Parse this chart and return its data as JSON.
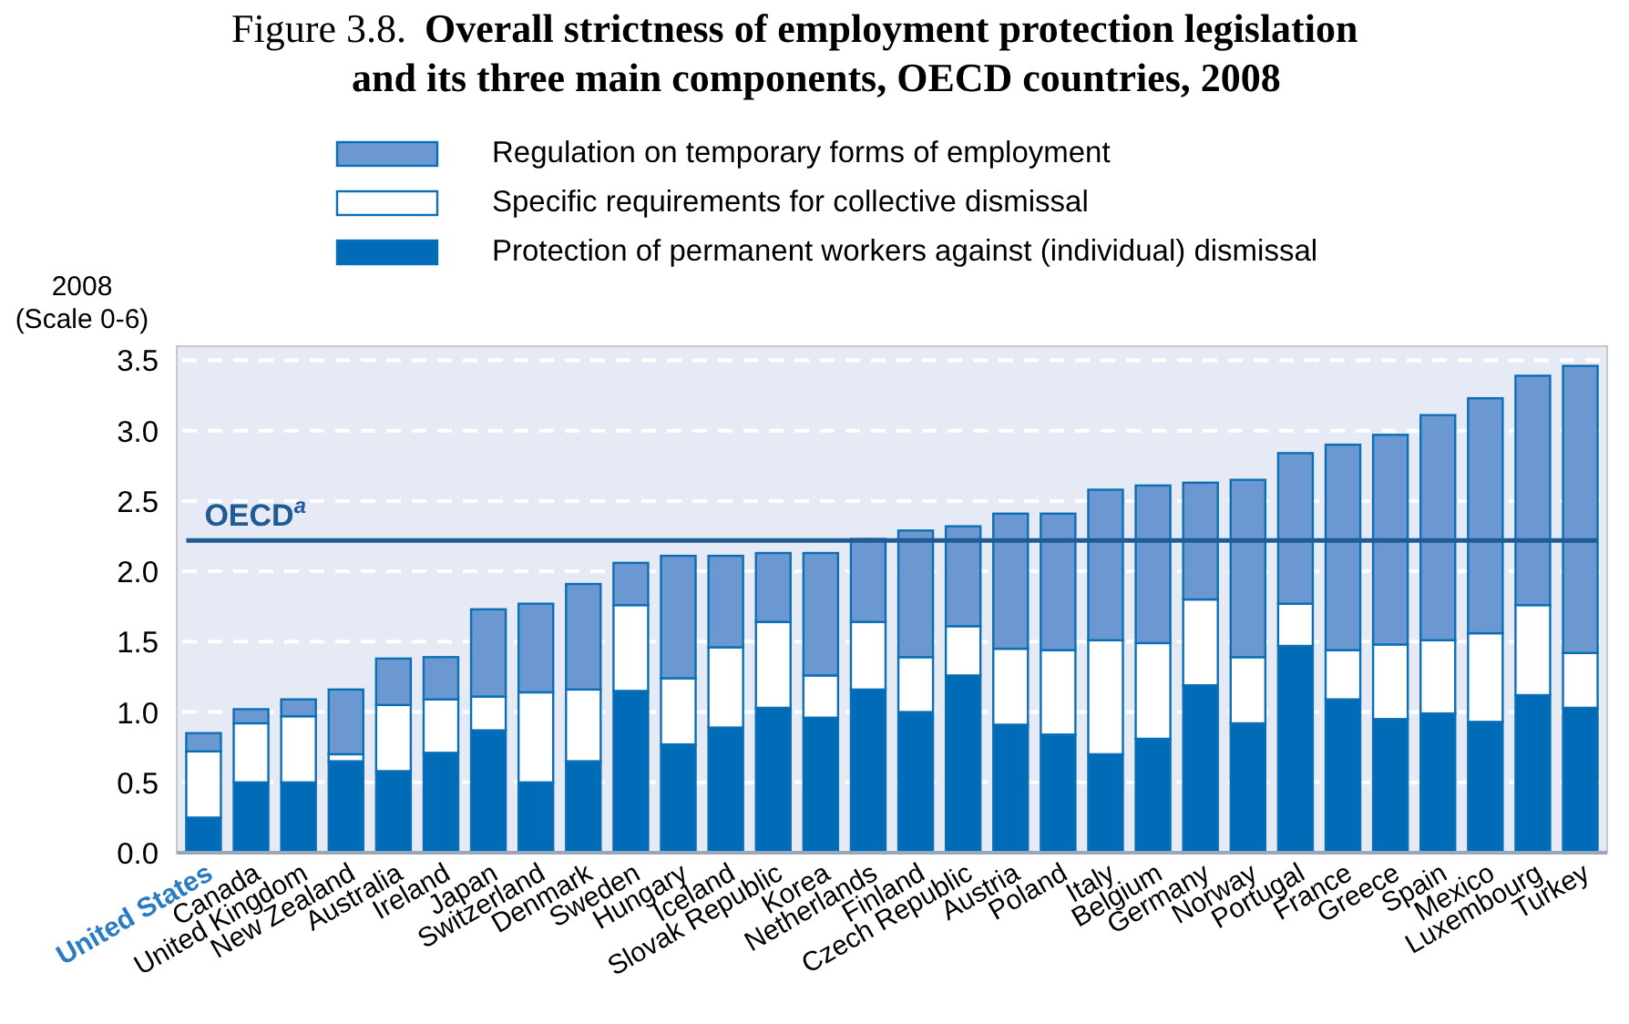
{
  "chart_data": {
    "type": "bar",
    "title": "Overall strictness of employment protection legislation\nand its three main components, OECD countries, 2008",
    "annotations": [
      "Figure 3.8."
    ],
    "ylabel": "2008\n(Scale 0-6)",
    "categories": [
      "United States",
      "Canada",
      "United Kingdom",
      "New Zealand",
      "Australia",
      "Ireland",
      "Japan",
      "Switzerland",
      "Denmark",
      "Sweden",
      "Hungary",
      "Iceland",
      "Slovak Republic",
      "Korea",
      "Netherlands",
      "Finland",
      "Czech Republic",
      "Austria",
      "Poland",
      "Italy",
      "Belgium",
      "Germany",
      "Norway",
      "Portugal",
      "France",
      "Greece",
      "Spain",
      "Mexico",
      "Luxembourg",
      "Turkey"
    ],
    "stacked": true,
    "series": [
      {
        "name": "Protection of permanent workers against (individual) dismissal",
        "color": "#006bb6",
        "values": [
          0.25,
          0.5,
          0.5,
          0.65,
          0.58,
          0.71,
          0.87,
          0.5,
          0.65,
          1.15,
          0.77,
          0.89,
          1.03,
          0.96,
          1.16,
          1.0,
          1.26,
          0.91,
          0.84,
          0.7,
          0.81,
          1.19,
          0.92,
          1.47,
          1.09,
          0.95,
          0.99,
          0.93,
          1.12,
          1.03
        ]
      },
      {
        "name": "Specific requirements for collective dismissal",
        "color": "#ffffff",
        "values": [
          0.47,
          0.42,
          0.47,
          0.05,
          0.47,
          0.38,
          0.24,
          0.64,
          0.51,
          0.61,
          0.47,
          0.57,
          0.61,
          0.3,
          0.48,
          0.39,
          0.35,
          0.54,
          0.6,
          0.81,
          0.68,
          0.61,
          0.47,
          0.3,
          0.35,
          0.53,
          0.52,
          0.63,
          0.64,
          0.39
        ]
      },
      {
        "name": "Regulation on temporary forms of employment",
        "color": "#6b98d0",
        "values": [
          0.13,
          0.1,
          0.12,
          0.46,
          0.33,
          0.3,
          0.62,
          0.63,
          0.75,
          0.3,
          0.87,
          0.65,
          0.49,
          0.87,
          0.59,
          0.9,
          0.71,
          0.96,
          0.97,
          1.07,
          1.12,
          0.83,
          1.26,
          1.07,
          1.46,
          1.49,
          1.6,
          1.67,
          1.63,
          2.04
        ]
      }
    ],
    "ylim": [
      0,
      3.6
    ],
    "yticks": [
      {
        "value": 0,
        "label": "0.0"
      },
      {
        "value": 0.5,
        "label": "0.5"
      },
      {
        "value": 1,
        "label": "1.0"
      },
      {
        "value": 1.5,
        "label": "1.5"
      },
      {
        "value": 2,
        "label": "2.0"
      },
      {
        "value": 2.5,
        "label": "2.5"
      },
      {
        "value": 3,
        "label": "3.0"
      },
      {
        "value": 3.5,
        "label": "3.5"
      }
    ],
    "grid": "y",
    "legend": "top",
    "ref_lines": [
      {
        "axis": "y",
        "value": 2.22,
        "label": "OECD$^{a}$",
        "color": "#1f5b94"
      }
    ]
  }
}
